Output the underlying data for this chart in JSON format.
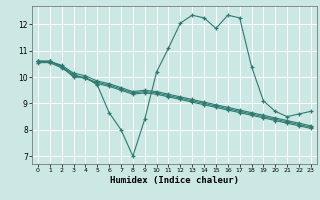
{
  "xlabel": "Humidex (Indice chaleur)",
  "background_color": "#cce8e4",
  "grid_color": "#ffffff",
  "line_color": "#2d7a70",
  "xlim": [
    -0.5,
    23.5
  ],
  "ylim": [
    6.7,
    12.7
  ],
  "yticks": [
    7,
    8,
    9,
    10,
    11,
    12
  ],
  "xticks": [
    0,
    1,
    2,
    3,
    4,
    5,
    6,
    7,
    8,
    9,
    10,
    11,
    12,
    13,
    14,
    15,
    16,
    17,
    18,
    19,
    20,
    21,
    22,
    23
  ],
  "line1_x": [
    0,
    1,
    2,
    3,
    4,
    5,
    6,
    7,
    8,
    9,
    10,
    11,
    12,
    13,
    14,
    15,
    16,
    17,
    18,
    19,
    20,
    21,
    22,
    23
  ],
  "line1_y": [
    10.6,
    10.6,
    10.4,
    10.0,
    10.0,
    9.7,
    8.65,
    8.0,
    7.0,
    8.4,
    10.2,
    11.1,
    12.05,
    12.35,
    12.25,
    11.85,
    12.35,
    12.25,
    10.4,
    9.1,
    8.7,
    8.5,
    8.6,
    8.7
  ],
  "line2_x": [
    0,
    1,
    2,
    3,
    4,
    5,
    6,
    7,
    8,
    9,
    10,
    11,
    12,
    13,
    14,
    15,
    16,
    17,
    18,
    19,
    20,
    21,
    22,
    23
  ],
  "line2_y": [
    10.55,
    10.55,
    10.35,
    10.05,
    9.95,
    9.75,
    9.65,
    9.5,
    9.35,
    9.4,
    9.35,
    9.25,
    9.15,
    9.05,
    8.95,
    8.85,
    8.75,
    8.65,
    8.55,
    8.45,
    8.35,
    8.25,
    8.15,
    8.05
  ],
  "line3_x": [
    0,
    1,
    2,
    3,
    4,
    5,
    6,
    7,
    8,
    9,
    10,
    11,
    12,
    13,
    14,
    15,
    16,
    17,
    18,
    19,
    20,
    21,
    22,
    23
  ],
  "line3_y": [
    10.6,
    10.6,
    10.4,
    10.1,
    9.95,
    9.8,
    9.7,
    9.55,
    9.4,
    9.45,
    9.4,
    9.3,
    9.2,
    9.1,
    9.0,
    8.9,
    8.8,
    8.7,
    8.6,
    8.5,
    8.4,
    8.3,
    8.2,
    8.1
  ],
  "line4_x": [
    0,
    1,
    2,
    3,
    4,
    5,
    6,
    7,
    8,
    9,
    10,
    11,
    12,
    13,
    14,
    15,
    16,
    17,
    18,
    19,
    20,
    21,
    22,
    23
  ],
  "line4_y": [
    10.6,
    10.6,
    10.45,
    10.15,
    10.05,
    9.85,
    9.75,
    9.6,
    9.45,
    9.5,
    9.45,
    9.35,
    9.25,
    9.15,
    9.05,
    8.95,
    8.85,
    8.75,
    8.65,
    8.55,
    8.45,
    8.35,
    8.25,
    8.15
  ]
}
